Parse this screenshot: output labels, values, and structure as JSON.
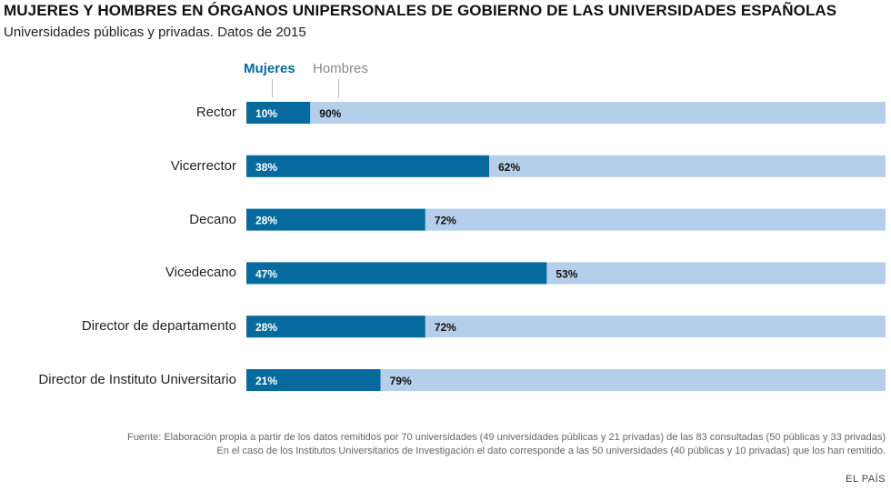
{
  "colors": {
    "mujeres": "#066a9e",
    "hombres": "#b5cfea",
    "mujeres_label": "#ffffff",
    "hombres_label": "#111111"
  },
  "chart_data": {
    "type": "bar",
    "orientation": "horizontal",
    "stacked": true,
    "title": "MUJERES Y HOMBRES EN ÓRGANOS UNIPERSONALES DE GOBIERNO DE LAS UNIVERSIDADES ESPAÑOLAS",
    "subtitle": "Universidades públicas y privadas. Datos de 2015",
    "categories": [
      "Rector",
      "Vicerrector",
      "Decano",
      "Vicedecano",
      "Director de departamento",
      "Director de Instituto Universitario"
    ],
    "series": [
      {
        "name": "Mujeres",
        "values": [
          10,
          38,
          28,
          47,
          28,
          21
        ],
        "labels": [
          "10%",
          "38%",
          "28%",
          "47%",
          "28%",
          "21%"
        ]
      },
      {
        "name": "Hombres",
        "values": [
          90,
          62,
          72,
          53,
          72,
          79
        ],
        "labels": [
          "90%",
          "62%",
          "72%",
          "53%",
          "72%",
          "79%"
        ]
      }
    ],
    "xlim": [
      0,
      100
    ],
    "grid": false,
    "legend": "top-left"
  },
  "footnotes": [
    "Fuente: Elaboración propia a partir de los datos remitidos por 70 universidades (49 universidades públicas y 21 privadas) de las 83 consultadas (50 públicas y 33 privadas)",
    "En el caso de los Institutos Universitarios de Investigación el dato corresponde a las 50 universidades (40 públicas y 10 privadas) que los han remitido."
  ],
  "brand": "EL PAÍS"
}
